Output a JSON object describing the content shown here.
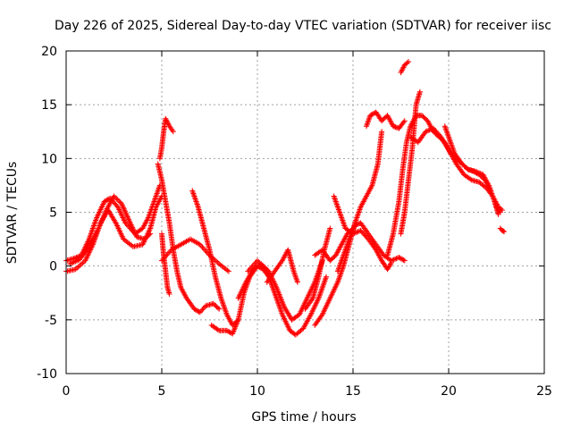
{
  "chart_data": {
    "type": "scatter",
    "title": "Day 226 of 2025, Sidereal Day-to-day VTEC variation (SDTVAR) for receiver iisc",
    "xlabel": "GPS time / hours",
    "ylabel": "SDTVAR / TECUs",
    "xlim": [
      0,
      25
    ],
    "ylim": [
      -10,
      20
    ],
    "xticks": [
      0,
      5,
      10,
      15,
      20,
      25
    ],
    "yticks": [
      -10,
      -5,
      0,
      5,
      10,
      15,
      20
    ],
    "grid": true,
    "marker": "+",
    "color": "#ff0000",
    "series": [
      {
        "values": [
          [
            0.0,
            0.5
          ],
          [
            0.4,
            0.7
          ],
          [
            0.8,
            1.0
          ],
          [
            1.2,
            2.5
          ],
          [
            1.6,
            4.5
          ],
          [
            2.0,
            6.0
          ],
          [
            2.3,
            6.3
          ],
          [
            2.7,
            5.5
          ],
          [
            3.1,
            4.0
          ],
          [
            3.6,
            3.0
          ],
          [
            4.0,
            3.5
          ],
          [
            4.3,
            4.5
          ],
          [
            4.6,
            6.0
          ],
          [
            4.9,
            7.5
          ]
        ]
      },
      {
        "values": [
          [
            0.0,
            -0.5
          ],
          [
            0.5,
            -0.3
          ],
          [
            1.0,
            0.5
          ],
          [
            1.4,
            2.0
          ],
          [
            1.8,
            4.0
          ],
          [
            2.2,
            5.2
          ],
          [
            2.6,
            4.0
          ],
          [
            3.0,
            2.5
          ],
          [
            3.5,
            1.8
          ],
          [
            4.0,
            2.0
          ],
          [
            4.4,
            3.5
          ],
          [
            4.7,
            5.5
          ],
          [
            5.0,
            6.5
          ]
        ]
      },
      {
        "values": [
          [
            0.2,
            0.2
          ],
          [
            0.7,
            0.6
          ],
          [
            1.2,
            1.8
          ],
          [
            1.7,
            3.5
          ],
          [
            2.1,
            5.2
          ],
          [
            2.5,
            6.5
          ],
          [
            2.9,
            5.8
          ],
          [
            3.3,
            4.2
          ],
          [
            3.7,
            2.7
          ],
          [
            4.1,
            2.5
          ],
          [
            4.4,
            3.0
          ]
        ]
      },
      {
        "values": [
          [
            4.9,
            10.0
          ],
          [
            5.0,
            11.0
          ],
          [
            5.1,
            12.5
          ],
          [
            5.2,
            13.7
          ],
          [
            5.4,
            13.0
          ],
          [
            5.6,
            12.5
          ]
        ]
      },
      {
        "values": [
          [
            4.8,
            9.5
          ],
          [
            5.0,
            8.0
          ],
          [
            5.2,
            6.0
          ],
          [
            5.4,
            4.0
          ],
          [
            5.6,
            1.5
          ],
          [
            5.8,
            -0.5
          ],
          [
            6.0,
            -2.0
          ],
          [
            6.3,
            -3.0
          ],
          [
            6.7,
            -4.0
          ],
          [
            7.0,
            -4.3
          ],
          [
            7.3,
            -3.7
          ],
          [
            7.7,
            -3.5
          ],
          [
            8.0,
            -4.0
          ]
        ]
      },
      {
        "values": [
          [
            5.0,
            3.0
          ],
          [
            5.1,
            1.0
          ],
          [
            5.2,
            -0.5
          ],
          [
            5.3,
            -2.0
          ],
          [
            5.4,
            -2.6
          ]
        ]
      },
      {
        "values": [
          [
            5.0,
            0.5
          ],
          [
            5.5,
            1.5
          ],
          [
            6.0,
            2.0
          ],
          [
            6.5,
            2.5
          ],
          [
            7.0,
            2.0
          ],
          [
            7.5,
            1.0
          ],
          [
            8.0,
            0.2
          ],
          [
            8.5,
            -0.5
          ]
        ]
      },
      {
        "values": [
          [
            6.6,
            7.0
          ],
          [
            6.9,
            5.5
          ],
          [
            7.2,
            3.5
          ],
          [
            7.5,
            1.5
          ],
          [
            7.8,
            -1.0
          ],
          [
            8.1,
            -3.0
          ],
          [
            8.4,
            -4.5
          ],
          [
            8.7,
            -5.5
          ],
          [
            9.0,
            -5.0
          ]
        ]
      },
      {
        "values": [
          [
            7.6,
            -5.5
          ],
          [
            8.0,
            -6.0
          ],
          [
            8.4,
            -6.0
          ],
          [
            8.7,
            -6.3
          ],
          [
            9.0,
            -5.0
          ],
          [
            9.3,
            -2.5
          ],
          [
            9.6,
            -1.0
          ],
          [
            10.0,
            0.0
          ],
          [
            10.3,
            -0.3
          ],
          [
            10.6,
            -1.0
          ]
        ]
      },
      {
        "values": [
          [
            9.0,
            -3.0
          ],
          [
            9.4,
            -1.5
          ],
          [
            9.8,
            -0.3
          ],
          [
            10.2,
            0.2
          ],
          [
            10.6,
            -0.5
          ],
          [
            11.0,
            -2.0
          ],
          [
            11.4,
            -3.8
          ],
          [
            11.8,
            -5.0
          ],
          [
            12.2,
            -4.5
          ],
          [
            12.6,
            -3.0
          ],
          [
            13.0,
            -1.5
          ],
          [
            13.4,
            0.5
          ]
        ]
      },
      {
        "values": [
          [
            9.5,
            -0.5
          ],
          [
            10.0,
            0.5
          ],
          [
            10.5,
            -0.5
          ],
          [
            10.9,
            -2.5
          ],
          [
            11.3,
            -4.5
          ],
          [
            11.7,
            -6.0
          ],
          [
            12.0,
            -6.4
          ],
          [
            12.4,
            -5.8
          ],
          [
            12.8,
            -4.5
          ],
          [
            13.2,
            -3.0
          ],
          [
            13.6,
            -1.0
          ]
        ]
      },
      {
        "values": [
          [
            10.5,
            -1.5
          ],
          [
            10.9,
            -0.5
          ],
          [
            11.3,
            0.5
          ],
          [
            11.6,
            1.5
          ],
          [
            11.9,
            -0.5
          ],
          [
            12.1,
            -1.5
          ]
        ]
      },
      {
        "values": [
          [
            12.5,
            -4.0
          ],
          [
            12.9,
            -3.0
          ],
          [
            13.2,
            -1.0
          ],
          [
            13.5,
            1.5
          ],
          [
            13.8,
            3.5
          ]
        ]
      },
      {
        "values": [
          [
            13.0,
            1.0
          ],
          [
            13.4,
            1.5
          ],
          [
            13.8,
            0.5
          ],
          [
            14.1,
            1.0
          ],
          [
            14.4,
            2.0
          ],
          [
            14.7,
            3.0
          ],
          [
            15.0,
            3.5
          ]
        ]
      },
      {
        "values": [
          [
            13.0,
            -5.5
          ],
          [
            13.4,
            -4.5
          ],
          [
            13.8,
            -3.0
          ],
          [
            14.2,
            -1.5
          ],
          [
            14.5,
            0.0
          ],
          [
            14.8,
            2.0
          ],
          [
            15.1,
            4.0
          ],
          [
            15.4,
            5.5
          ],
          [
            15.7,
            6.5
          ],
          [
            16.0,
            7.5
          ],
          [
            16.3,
            9.5
          ],
          [
            16.5,
            12.5
          ]
        ]
      },
      {
        "values": [
          [
            14.0,
            6.5
          ],
          [
            14.3,
            5.0
          ],
          [
            14.6,
            3.5
          ],
          [
            15.0,
            3.0
          ],
          [
            15.4,
            3.3
          ],
          [
            15.8,
            2.5
          ],
          [
            16.2,
            1.5
          ],
          [
            16.5,
            0.5
          ],
          [
            16.8,
            -0.3
          ],
          [
            17.0,
            0.3
          ]
        ]
      },
      {
        "values": [
          [
            14.2,
            -0.5
          ],
          [
            14.5,
            1.0
          ],
          [
            14.8,
            2.5
          ],
          [
            15.1,
            3.8
          ],
          [
            15.4,
            4.0
          ],
          [
            15.8,
            3.0
          ],
          [
            16.2,
            2.0
          ],
          [
            16.6,
            1.0
          ],
          [
            17.0,
            0.5
          ],
          [
            17.4,
            0.8
          ],
          [
            17.7,
            0.5
          ]
        ]
      },
      {
        "values": [
          [
            15.7,
            13.0
          ],
          [
            15.9,
            14.0
          ],
          [
            16.2,
            14.3
          ],
          [
            16.5,
            13.5
          ],
          [
            16.8,
            14.0
          ],
          [
            17.1,
            13.0
          ],
          [
            17.4,
            12.8
          ],
          [
            17.7,
            13.5
          ]
        ]
      },
      {
        "values": [
          [
            16.8,
            1.0
          ],
          [
            17.1,
            3.0
          ],
          [
            17.4,
            6.0
          ],
          [
            17.6,
            9.0
          ],
          [
            17.8,
            11.5
          ],
          [
            18.0,
            13.0
          ],
          [
            18.3,
            14.0
          ],
          [
            18.6,
            14.0
          ],
          [
            18.9,
            13.5
          ],
          [
            19.2,
            12.5
          ],
          [
            19.5,
            12.0
          ],
          [
            19.8,
            11.5
          ],
          [
            20.1,
            10.5
          ],
          [
            20.4,
            10.0
          ],
          [
            20.7,
            9.5
          ],
          [
            21.0,
            9.0
          ],
          [
            21.3,
            8.8
          ],
          [
            21.6,
            8.5
          ],
          [
            21.9,
            8.0
          ],
          [
            22.2,
            7.0
          ],
          [
            22.5,
            5.5
          ],
          [
            22.7,
            5.0
          ]
        ]
      },
      {
        "values": [
          [
            17.5,
            18.0
          ],
          [
            17.7,
            18.7
          ],
          [
            17.9,
            19.0
          ]
        ]
      },
      {
        "values": [
          [
            17.5,
            3.0
          ],
          [
            17.7,
            5.0
          ],
          [
            17.9,
            8.0
          ],
          [
            18.1,
            11.0
          ],
          [
            18.3,
            15.0
          ],
          [
            18.5,
            16.2
          ]
        ]
      },
      {
        "values": [
          [
            18.0,
            12.0
          ],
          [
            18.4,
            11.5
          ],
          [
            18.8,
            12.5
          ],
          [
            19.2,
            12.8
          ],
          [
            19.6,
            12.0
          ],
          [
            20.0,
            10.8
          ],
          [
            20.4,
            9.5
          ],
          [
            20.8,
            8.5
          ],
          [
            21.2,
            8.0
          ],
          [
            21.6,
            7.8
          ],
          [
            22.0,
            7.2
          ],
          [
            22.3,
            6.5
          ],
          [
            22.6,
            5.5
          ],
          [
            22.8,
            5.2
          ]
        ]
      },
      {
        "values": [
          [
            19.8,
            13.0
          ],
          [
            20.0,
            12.0
          ],
          [
            20.3,
            10.5
          ],
          [
            20.7,
            9.5
          ],
          [
            21.0,
            9.0
          ],
          [
            21.4,
            8.8
          ],
          [
            21.8,
            8.5
          ],
          [
            22.1,
            7.5
          ],
          [
            22.4,
            6.0
          ],
          [
            22.6,
            4.8
          ]
        ]
      },
      {
        "values": [
          [
            22.7,
            3.5
          ],
          [
            22.8,
            3.3
          ],
          [
            22.9,
            3.2
          ]
        ]
      }
    ]
  }
}
